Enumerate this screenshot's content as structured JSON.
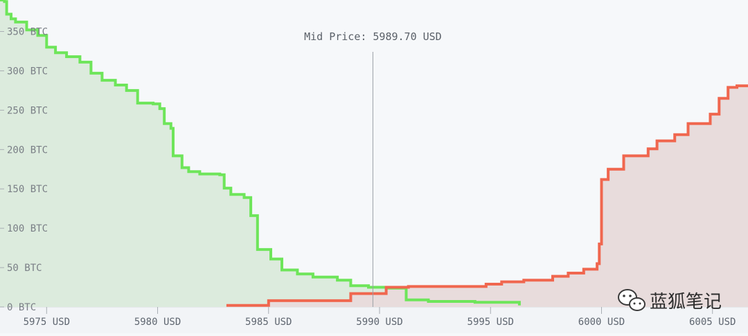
{
  "chart_data": {
    "type": "area",
    "title": "",
    "mid_price": {
      "prefix": "Mid Price:",
      "value": 5989.7,
      "text": "5989.70",
      "unit": "USD"
    },
    "xlim": [
      5972.9,
      6006.6
    ],
    "ylim": [
      0,
      390
    ],
    "x_ticks": [
      {
        "value": 5975,
        "label": "5975 USD"
      },
      {
        "value": 5980,
        "label": "5980 USD"
      },
      {
        "value": 5985,
        "label": "5985 USD"
      },
      {
        "value": 5990,
        "label": "5990 USD"
      },
      {
        "value": 5995,
        "label": "5995 USD"
      },
      {
        "value": 6000,
        "label": "6000 USD"
      },
      {
        "value": 6005,
        "label": "6005 USD"
      }
    ],
    "y_ticks": [
      {
        "value": 0,
        "label": "0 BTC"
      },
      {
        "value": 50,
        "label": "50 BTC"
      },
      {
        "value": 100,
        "label": "100 BTC"
      },
      {
        "value": 150,
        "label": "150 BTC"
      },
      {
        "value": 200,
        "label": "200 BTC"
      },
      {
        "value": 250,
        "label": "250 BTC"
      },
      {
        "value": 300,
        "label": "300 BTC"
      },
      {
        "value": 350,
        "label": "350 BTC"
      }
    ],
    "series": [
      {
        "side": "bids",
        "color": "#6ee55a",
        "fill": "#dcebdd",
        "points": [
          [
            5972.9,
            390
          ],
          [
            5973.1,
            388
          ],
          [
            5973.2,
            372
          ],
          [
            5973.4,
            366
          ],
          [
            5973.6,
            362
          ],
          [
            5974.1,
            352
          ],
          [
            5974.6,
            345
          ],
          [
            5975.0,
            330
          ],
          [
            5975.4,
            323
          ],
          [
            5975.9,
            318
          ],
          [
            5976.5,
            311
          ],
          [
            5977.0,
            297
          ],
          [
            5977.5,
            288
          ],
          [
            5978.1,
            282
          ],
          [
            5978.6,
            275
          ],
          [
            5979.1,
            259
          ],
          [
            5979.8,
            258
          ],
          [
            5980.1,
            252
          ],
          [
            5980.3,
            233
          ],
          [
            5980.6,
            227
          ],
          [
            5980.7,
            192
          ],
          [
            5981.1,
            177
          ],
          [
            5981.4,
            172
          ],
          [
            5981.9,
            169
          ],
          [
            5982.8,
            168
          ],
          [
            5983.0,
            151
          ],
          [
            5983.3,
            143
          ],
          [
            5983.9,
            139
          ],
          [
            5984.2,
            116
          ],
          [
            5984.5,
            73
          ],
          [
            5985.1,
            61
          ],
          [
            5985.6,
            47
          ],
          [
            5986.3,
            42
          ],
          [
            5987.0,
            38
          ],
          [
            5988.1,
            34
          ],
          [
            5988.7,
            27
          ],
          [
            5989.5,
            25
          ],
          [
            5990.3,
            24
          ],
          [
            5991.2,
            9
          ],
          [
            5992.2,
            7
          ],
          [
            5994.3,
            6
          ],
          [
            5996.3,
            2
          ]
        ]
      },
      {
        "side": "asks",
        "color": "#f0674f",
        "fill": "#e8dcdc",
        "points": [
          [
            5983.1,
            2
          ],
          [
            5985.0,
            8
          ],
          [
            5988.7,
            17
          ],
          [
            5990.3,
            25
          ],
          [
            5991.3,
            26
          ],
          [
            5994.8,
            29
          ],
          [
            5995.5,
            32
          ],
          [
            5996.5,
            34
          ],
          [
            5997.8,
            39
          ],
          [
            5998.5,
            43
          ],
          [
            5999.2,
            48
          ],
          [
            5999.8,
            55
          ],
          [
            5999.9,
            80
          ],
          [
            6000.0,
            162
          ],
          [
            6000.3,
            175
          ],
          [
            6001.0,
            192
          ],
          [
            6002.1,
            201
          ],
          [
            6002.5,
            211
          ],
          [
            6003.3,
            219
          ],
          [
            6003.9,
            233
          ],
          [
            6004.9,
            245
          ],
          [
            6005.3,
            265
          ],
          [
            6005.7,
            279
          ],
          [
            6006.1,
            281
          ]
        ]
      }
    ]
  },
  "watermark": {
    "text": "蓝狐笔记",
    "icon": "wechat-icon"
  }
}
